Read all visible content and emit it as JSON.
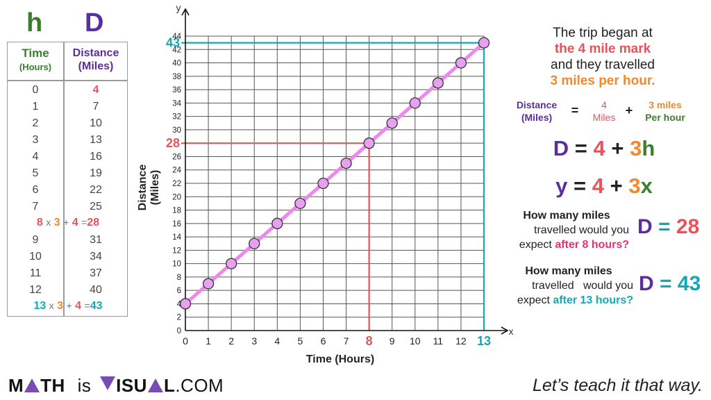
{
  "table": {
    "h_letter": "h",
    "d_letter": "D",
    "col1_title": "Time",
    "col1_unit": "(Hours)",
    "col2_title": "Distance",
    "col2_unit": "(Miles)",
    "rows": [
      {
        "h": "0",
        "d": "4"
      },
      {
        "h": "1",
        "d": "7"
      },
      {
        "h": "2",
        "d": "10"
      },
      {
        "h": "3",
        "d": "13"
      },
      {
        "h": "4",
        "d": "16"
      },
      {
        "h": "5",
        "d": "19"
      },
      {
        "h": "6",
        "d": "22"
      },
      {
        "h": "7",
        "d": "25"
      },
      {
        "h": "9",
        "d": "31"
      },
      {
        "h": "10",
        "d": "34"
      },
      {
        "h": "11",
        "d": "37"
      },
      {
        "h": "12",
        "d": "40"
      }
    ],
    "formula_8": {
      "h": "8",
      "times": "x",
      "rate": "3",
      "plus": "+",
      "start": "4",
      "eq": "=",
      "result": "28"
    },
    "formula_13": {
      "h": "13",
      "times": "x",
      "rate": "3",
      "plus": "+",
      "start": "4",
      "eq": "=",
      "result": "43"
    }
  },
  "chart_data": {
    "type": "scatter",
    "x": [
      0,
      1,
      2,
      3,
      4,
      5,
      6,
      7,
      8,
      9,
      10,
      11,
      12,
      13
    ],
    "y": [
      4,
      7,
      10,
      13,
      16,
      19,
      22,
      25,
      28,
      31,
      34,
      37,
      40,
      43
    ],
    "xlabel": "Time (Hours)",
    "ylabel": "Distance (Miles)",
    "x_axis_letter": "x",
    "y_axis_letter": "y",
    "xlim": [
      0,
      13
    ],
    "ylim": [
      0,
      44
    ],
    "xticks": [
      0,
      1,
      2,
      3,
      4,
      5,
      6,
      7,
      8,
      9,
      10,
      11,
      12,
      13
    ],
    "yticks": [
      0,
      2,
      4,
      6,
      8,
      10,
      12,
      14,
      16,
      18,
      20,
      22,
      24,
      26,
      28,
      30,
      32,
      34,
      36,
      38,
      40,
      42,
      44
    ],
    "grid": true,
    "line_color": "#ee88ee",
    "point_color": "#e8a0f0",
    "guides": [
      {
        "x": 8,
        "y": 28,
        "label_x": "8",
        "label_y": "28",
        "color": "#e8525a"
      },
      {
        "x": 13,
        "y": 43,
        "label_x": "13",
        "label_y": "43",
        "color": "#14a8b4"
      }
    ]
  },
  "right_panel": {
    "story_line1": "The trip began at",
    "story_line2": "the 4 mile mark",
    "story_line3": "and they travelled",
    "story_line4_a": "3 miles",
    "story_line4_b": "per hour.",
    "word_eq": {
      "lhs_1": "Distance",
      "lhs_2": "(Miles)",
      "eq": "=",
      "term1_1": "4",
      "term1_2": "Miles",
      "plus": "+",
      "term2_1": "3 miles",
      "term2_2": "Per hour"
    },
    "eq1": {
      "var": "D",
      "eq": "=",
      "c": "4",
      "plus": "+",
      "m": "3",
      "x": "h"
    },
    "eq2": {
      "var": "y",
      "eq": "=",
      "c": "4",
      "plus": "+",
      "m": "3",
      "x": "x"
    },
    "q1": {
      "l1": "How many miles",
      "l2": "travelled would you",
      "l3_a": "expect",
      "l3_b": "after 8 hours?",
      "ans_var": "D",
      "ans_eq": "=",
      "ans_val": "28"
    },
    "q2": {
      "l1": "How many miles",
      "l2": "travelled   would you",
      "l3_a": "expect",
      "l3_b": "after 13 hours?",
      "ans_var": "D",
      "ans_eq": "=",
      "ans_val": "43"
    }
  },
  "footer": {
    "logo_m": "M",
    "logo_th": "TH",
    "logo_is": "is",
    "logo_v": "V",
    "logo_isu": "ISU",
    "logo_l": "L",
    "logo_com": ".COM",
    "tagline": "Let’s teach it that way."
  }
}
